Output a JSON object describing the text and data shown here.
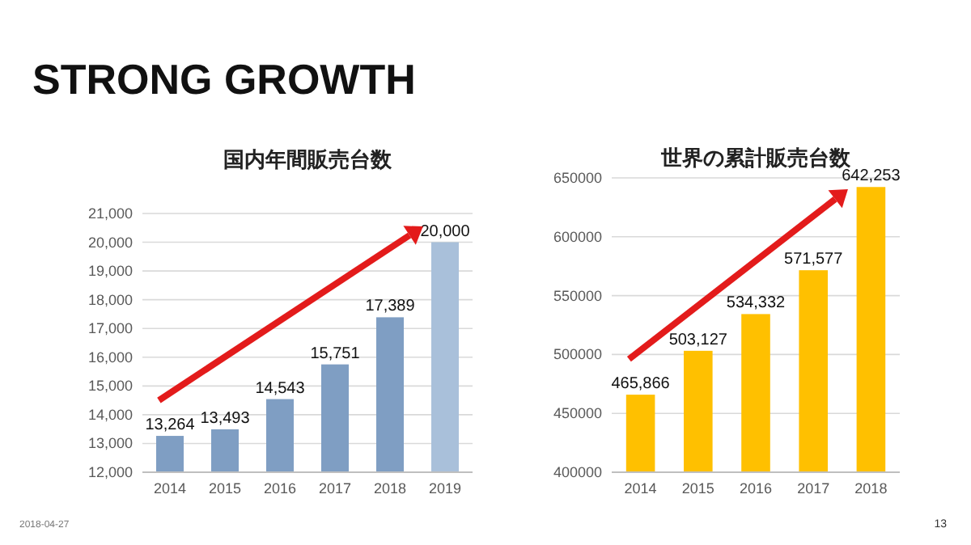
{
  "chart_data": [
    {
      "type": "bar",
      "title": "国内年間販売台数",
      "categories": [
        "2014",
        "2015",
        "2016",
        "2017",
        "2018",
        "2019"
      ],
      "values": [
        13264,
        13493,
        14543,
        15751,
        17389,
        20000
      ],
      "colors": [
        "#7f9ec3",
        "#7f9ec3",
        "#7f9ec3",
        "#7f9ec3",
        "#7f9ec3",
        "#a9c0da"
      ],
      "value_labels": [
        "13,264",
        "13,493",
        "14,543",
        "15,751",
        "17,389",
        "20,000"
      ],
      "grid": "y",
      "ylim": [
        12000,
        21000
      ],
      "yticks": [
        {
          "value": 12000,
          "label": "12,000"
        },
        {
          "value": 13000,
          "label": "13,000"
        },
        {
          "value": 14000,
          "label": "14,000"
        },
        {
          "value": 15000,
          "label": "15,000"
        },
        {
          "value": 16000,
          "label": "16,000"
        },
        {
          "value": 17000,
          "label": "17,000"
        },
        {
          "value": 18000,
          "label": "18,000"
        },
        {
          "value": 19000,
          "label": "19,000"
        },
        {
          "value": 20000,
          "label": "20,000"
        },
        {
          "value": 21000,
          "label": "21,000"
        }
      ],
      "annotations": [
        "STRONG GROWTH",
        "2018-04-27",
        "13"
      ]
    },
    {
      "type": "bar",
      "title": "世界の累計販売台数",
      "categories": [
        "2014",
        "2015",
        "2016",
        "2017",
        "2018"
      ],
      "values": [
        465866,
        503127,
        534332,
        571577,
        642253
      ],
      "color": "#ffc000",
      "value_labels": [
        "465,866",
        "503,127",
        "534,332",
        "571,577",
        "642,253"
      ],
      "grid": "y",
      "ylim": [
        400000,
        650000
      ],
      "yticks": [
        400000,
        450000,
        500000,
        550000,
        600000,
        650000
      ]
    }
  ]
}
